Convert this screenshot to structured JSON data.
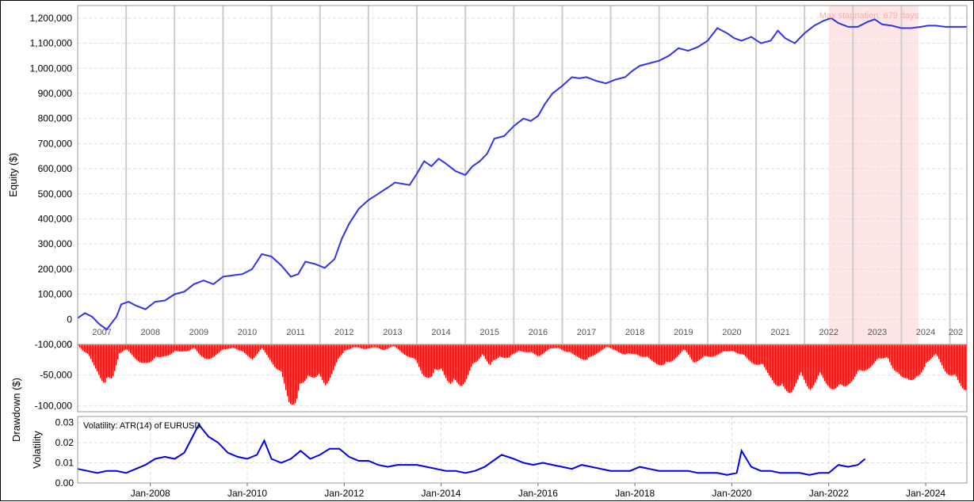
{
  "chart_data": [
    {
      "type": "line",
      "panel": "equity",
      "ylabel": "Equity ($)",
      "ylim": [
        -100000,
        1250000
      ],
      "yticks": [
        -100000,
        0,
        100000,
        200000,
        300000,
        400000,
        500000,
        600000,
        700000,
        800000,
        900000,
        1000000,
        1100000,
        1200000
      ],
      "ytick_labels": [
        "-100,000",
        "0",
        "100,000",
        "200,000",
        "300,000",
        "400,000",
        "500,000",
        "600,000",
        "700,000",
        "800,000",
        "900,000",
        "1,000,000",
        "1,100,000",
        "1,200,000"
      ],
      "year_labels": [
        "2007",
        "2008",
        "2009",
        "2010",
        "2011",
        "2012",
        "2013",
        "2014",
        "2015",
        "2016",
        "2017",
        "2018",
        "2019",
        "2020",
        "2021",
        "2022",
        "2023",
        "2024",
        "202"
      ],
      "grid": true,
      "line_color": "#3333ee",
      "annotation": {
        "text": "Max stagnation: 679 days",
        "color": "#ffaaaa",
        "shade_color": "#ffe6e6",
        "x_range": [
          2022.0,
          2023.85
        ]
      },
      "series": [
        {
          "x": [
            2006.5,
            2006.65,
            2006.8,
            2006.95,
            2007.1,
            2007.3,
            2007.4,
            2007.55,
            2007.7,
            2007.9,
            2008.1,
            2008.3,
            2008.5,
            2008.7,
            2008.9,
            2009.1,
            2009.3,
            2009.5,
            2009.7,
            2009.9,
            2010.1,
            2010.3,
            2010.5,
            2010.7,
            2010.9,
            2011.05,
            2011.2,
            2011.4,
            2011.6,
            2011.8,
            2011.95,
            2012.1,
            2012.3,
            2012.5,
            2012.7,
            2012.9,
            2013.05,
            2013.2,
            2013.35,
            2013.5,
            2013.65,
            2013.8,
            2013.95,
            2014.1,
            2014.3,
            2014.5,
            2014.65,
            2014.8,
            2014.95,
            2015.1,
            2015.3,
            2015.5,
            2015.7,
            2015.85,
            2016.0,
            2016.15,
            2016.3,
            2016.5,
            2016.7,
            2016.85,
            2017.0,
            2017.2,
            2017.4,
            2017.6,
            2017.8,
            2017.95,
            2018.1,
            2018.3,
            2018.5,
            2018.7,
            2018.9,
            2019.1,
            2019.3,
            2019.5,
            2019.7,
            2019.9,
            2020.05,
            2020.2,
            2020.4,
            2020.6,
            2020.8,
            2020.95,
            2021.1,
            2021.3,
            2021.5,
            2021.7,
            2021.9,
            2022.05,
            2022.2,
            2022.4,
            2022.6,
            2022.8,
            2022.95,
            2023.1,
            2023.3,
            2023.5,
            2023.7,
            2023.9,
            2024.05,
            2024.2,
            2024.4,
            2024.6,
            2024.75,
            2024.85
          ],
          "values": [
            5000,
            25000,
            10000,
            -20000,
            -40000,
            10000,
            60000,
            70000,
            55000,
            40000,
            70000,
            75000,
            100000,
            110000,
            140000,
            155000,
            140000,
            170000,
            175000,
            180000,
            200000,
            260000,
            250000,
            215000,
            170000,
            180000,
            230000,
            220000,
            205000,
            240000,
            320000,
            380000,
            440000,
            475000,
            500000,
            525000,
            545000,
            540000,
            535000,
            580000,
            630000,
            610000,
            640000,
            620000,
            590000,
            575000,
            610000,
            630000,
            660000,
            720000,
            730000,
            770000,
            800000,
            790000,
            810000,
            860000,
            900000,
            930000,
            965000,
            960000,
            965000,
            950000,
            940000,
            955000,
            965000,
            990000,
            1010000,
            1020000,
            1030000,
            1050000,
            1080000,
            1070000,
            1085000,
            1110000,
            1160000,
            1140000,
            1120000,
            1110000,
            1125000,
            1100000,
            1110000,
            1150000,
            1120000,
            1100000,
            1140000,
            1170000,
            1190000,
            1200000,
            1180000,
            1165000,
            1165000,
            1185000,
            1195000,
            1175000,
            1170000,
            1160000,
            1160000,
            1165000,
            1170000,
            1170000,
            1165000,
            1165000,
            1165000,
            1165000
          ]
        }
      ]
    },
    {
      "type": "bar",
      "panel": "drawdown",
      "ylabel": "Drawdown ($)",
      "ylim": [
        -110000,
        0
      ],
      "yticks": [
        0,
        -50000,
        -100000
      ],
      "ytick_labels": [
        "0",
        "-50,000",
        "-100,000"
      ],
      "grid": true,
      "bar_color": "#ff0000",
      "series": [
        {
          "x": [
            2006.5,
            2006.7,
            2006.9,
            2007.05,
            2007.2,
            2007.35,
            2007.5,
            2007.7,
            2007.9,
            2008.1,
            2008.3,
            2008.5,
            2008.7,
            2008.9,
            2009.1,
            2009.3,
            2009.5,
            2009.7,
            2009.9,
            2010.1,
            2010.3,
            2010.5,
            2010.7,
            2010.85,
            2011.0,
            2011.1,
            2011.25,
            2011.4,
            2011.6,
            2011.8,
            2012.0,
            2012.2,
            2012.4,
            2012.6,
            2012.8,
            2013.0,
            2013.2,
            2013.4,
            2013.6,
            2013.8,
            2014.0,
            2014.2,
            2014.4,
            2014.5,
            2014.6,
            2014.7,
            2014.85,
            2015.0,
            2015.2,
            2015.4,
            2015.6,
            2015.8,
            2016.0,
            2016.2,
            2016.4,
            2016.6,
            2016.8,
            2017.0,
            2017.2,
            2017.4,
            2017.6,
            2017.8,
            2018.0,
            2018.2,
            2018.4,
            2018.6,
            2018.8,
            2019.0,
            2019.2,
            2019.4,
            2019.6,
            2019.8,
            2020.0,
            2020.2,
            2020.4,
            2020.6,
            2020.8,
            2021.0,
            2021.2,
            2021.4,
            2021.6,
            2021.8,
            2022.0,
            2022.2,
            2022.4,
            2022.6,
            2022.8,
            2023.0,
            2023.2,
            2023.4,
            2023.6,
            2023.8,
            2024.0,
            2024.2,
            2024.4,
            2024.6,
            2024.8
          ],
          "values": [
            -2000,
            -20000,
            -45000,
            -75000,
            -60000,
            -15000,
            -10000,
            -25000,
            -40000,
            -20000,
            -25000,
            -10000,
            -15000,
            -5000,
            -30000,
            -20000,
            -10000,
            -5000,
            -15000,
            -25000,
            -8000,
            -30000,
            -60000,
            -95000,
            -105000,
            -80000,
            -50000,
            -60000,
            -70000,
            -40000,
            -10000,
            -5000,
            -8000,
            -5000,
            -10000,
            -3000,
            -15000,
            -25000,
            -50000,
            -60000,
            -40000,
            -75000,
            -70000,
            -60000,
            -45000,
            -35000,
            -15000,
            -40000,
            -20000,
            -25000,
            -10000,
            -15000,
            -20000,
            -10000,
            -5000,
            -15000,
            -20000,
            -30000,
            -15000,
            -5000,
            -10000,
            -20000,
            -15000,
            -25000,
            -30000,
            -40000,
            -25000,
            -10000,
            -30000,
            -25000,
            -20000,
            -15000,
            -10000,
            -20000,
            -30000,
            -40000,
            -55000,
            -85000,
            -80000,
            -60000,
            -75000,
            -60000,
            -70000,
            -85000,
            -65000,
            -55000,
            -40000,
            -30000,
            -20000,
            -60000,
            -55000,
            -70000,
            -30000,
            -20000,
            -45000,
            -65000,
            -75000
          ]
        }
      ]
    },
    {
      "type": "line",
      "panel": "volatility",
      "ylabel": "Volatility",
      "legend_text": "Volatility: ATR(14) of EURUSD",
      "ylim": [
        0,
        0.033
      ],
      "yticks": [
        0,
        0.01,
        0.02,
        0.03
      ],
      "ytick_labels": [
        "0.00",
        "0.01",
        "0.02",
        "0.03"
      ],
      "xtick_labels": [
        "Jan-2008",
        "Jan-2010",
        "Jan-2012",
        "Jan-2014",
        "Jan-2016",
        "Jan-2018",
        "Jan-2020",
        "Jan-2022",
        "Jan-2024"
      ],
      "xtick_values": [
        2008,
        2010,
        2012,
        2014,
        2016,
        2018,
        2020,
        2022,
        2024
      ],
      "grid": true,
      "line_color": "#0000ee",
      "series": [
        {
          "x": [
            2006.5,
            2006.7,
            2006.9,
            2007.1,
            2007.3,
            2007.5,
            2007.7,
            2007.9,
            2008.1,
            2008.3,
            2008.5,
            2008.7,
            2008.85,
            2009.0,
            2009.2,
            2009.4,
            2009.6,
            2009.8,
            2010.0,
            2010.2,
            2010.35,
            2010.5,
            2010.7,
            2010.9,
            2011.1,
            2011.3,
            2011.5,
            2011.7,
            2011.9,
            2012.1,
            2012.3,
            2012.5,
            2012.7,
            2012.9,
            2013.1,
            2013.3,
            2013.5,
            2013.7,
            2013.9,
            2014.1,
            2014.3,
            2014.5,
            2014.7,
            2014.9,
            2015.25,
            2015.5,
            2015.7,
            2015.9,
            2016.1,
            2016.3,
            2016.5,
            2016.7,
            2016.9,
            2017.1,
            2017.3,
            2017.5,
            2017.7,
            2017.9,
            2018.1,
            2018.3,
            2018.5,
            2018.7,
            2018.9,
            2019.1,
            2019.3,
            2019.5,
            2019.7,
            2019.9,
            2020.1,
            2020.2,
            2020.4,
            2020.6,
            2020.8,
            2021.0,
            2021.2,
            2021.4,
            2021.6,
            2021.8,
            2022.0,
            2022.2,
            2022.4,
            2022.6,
            2022.75
          ],
          "values": [
            0.007,
            0.006,
            0.005,
            0.006,
            0.006,
            0.005,
            0.007,
            0.009,
            0.012,
            0.013,
            0.012,
            0.015,
            0.022,
            0.029,
            0.023,
            0.02,
            0.015,
            0.013,
            0.012,
            0.014,
            0.021,
            0.012,
            0.01,
            0.012,
            0.016,
            0.012,
            0.014,
            0.017,
            0.017,
            0.013,
            0.011,
            0.011,
            0.009,
            0.008,
            0.009,
            0.009,
            0.009,
            0.008,
            0.007,
            0.006,
            0.006,
            0.005,
            0.006,
            0.008,
            0.014,
            0.012,
            0.01,
            0.009,
            0.01,
            0.009,
            0.008,
            0.007,
            0.009,
            0.008,
            0.007,
            0.006,
            0.006,
            0.006,
            0.008,
            0.007,
            0.006,
            0.006,
            0.006,
            0.006,
            0.005,
            0.005,
            0.005,
            0.004,
            0.005,
            0.016,
            0.008,
            0.006,
            0.006,
            0.005,
            0.005,
            0.005,
            0.004,
            0.005,
            0.005,
            0.009,
            0.008,
            0.009,
            0.012
          ]
        }
      ]
    }
  ]
}
